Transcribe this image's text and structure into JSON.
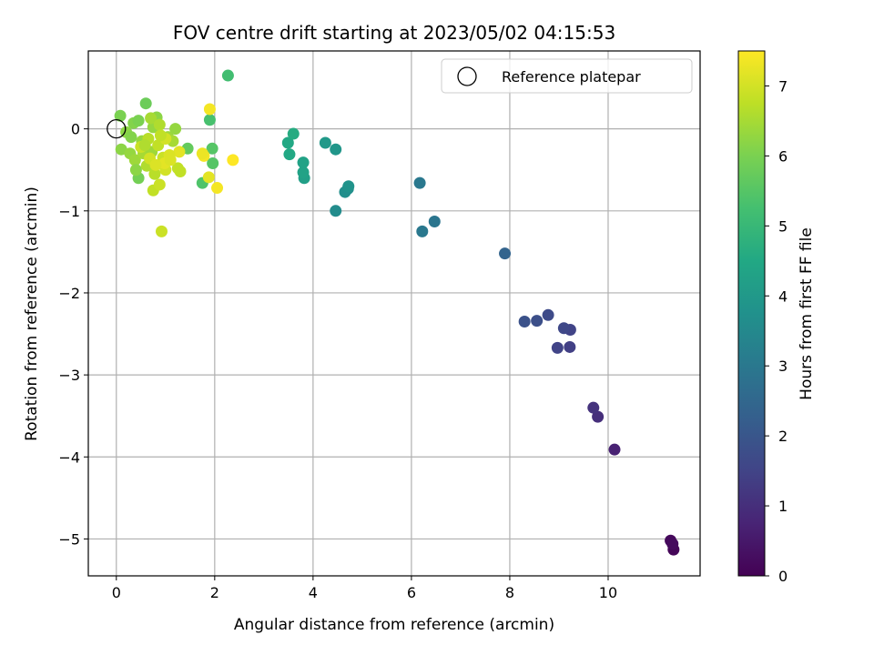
{
  "chart_data": {
    "type": "scatter",
    "title": "FOV centre drift starting at 2023/05/02 04:15:53",
    "xlabel": "Angular distance from reference (arcmin)",
    "ylabel": "Rotation from reference (arcmin)",
    "xlim": [
      -0.57,
      11.87
    ],
    "ylim": [
      -5.45,
      0.95
    ],
    "xticks": [
      0,
      2,
      4,
      6,
      8,
      10
    ],
    "yticks": [
      0,
      -1,
      -2,
      -3,
      -4,
      -5
    ],
    "xtick_labels": [
      "0",
      "2",
      "4",
      "6",
      "8",
      "10"
    ],
    "ytick_labels": [
      "0",
      "−1",
      "−2",
      "−3",
      "−4",
      "−5"
    ],
    "grid": true,
    "legend": {
      "position": "top-right",
      "entries": [
        "Reference platepar"
      ]
    },
    "reference_point": {
      "x": 0,
      "y": 0
    },
    "colorbar": {
      "label": "Hours from first FF file",
      "range": [
        0,
        7.5
      ],
      "ticks": [
        0,
        1,
        2,
        3,
        4,
        5,
        6,
        7
      ],
      "tick_labels": [
        "0",
        "1",
        "2",
        "3",
        "4",
        "5",
        "6",
        "7"
      ],
      "colormap": "viridis"
    },
    "points": [
      {
        "x": 11.33,
        "y": -5.13,
        "c": 0.1
      },
      {
        "x": 11.27,
        "y": -5.02,
        "c": 0.15
      },
      {
        "x": 11.31,
        "y": -5.06,
        "c": 0.2
      },
      {
        "x": 10.13,
        "y": -3.91,
        "c": 0.7
      },
      {
        "x": 9.79,
        "y": -3.51,
        "c": 1.0
      },
      {
        "x": 9.7,
        "y": -3.4,
        "c": 1.1
      },
      {
        "x": 9.22,
        "y": -2.66,
        "c": 1.4
      },
      {
        "x": 8.97,
        "y": -2.67,
        "c": 1.5
      },
      {
        "x": 9.23,
        "y": -2.45,
        "c": 1.5
      },
      {
        "x": 9.1,
        "y": -2.43,
        "c": 1.6
      },
      {
        "x": 8.78,
        "y": -2.27,
        "c": 1.7
      },
      {
        "x": 8.55,
        "y": -2.34,
        "c": 1.8
      },
      {
        "x": 8.3,
        "y": -2.35,
        "c": 1.9
      },
      {
        "x": 7.9,
        "y": -1.52,
        "c": 2.4
      },
      {
        "x": 6.47,
        "y": -1.13,
        "c": 2.9
      },
      {
        "x": 6.22,
        "y": -1.25,
        "c": 3.0
      },
      {
        "x": 6.17,
        "y": -0.66,
        "c": 3.0
      },
      {
        "x": 4.46,
        "y": -1.0,
        "c": 3.6
      },
      {
        "x": 4.65,
        "y": -0.77,
        "c": 3.7
      },
      {
        "x": 4.71,
        "y": -0.73,
        "c": 3.7
      },
      {
        "x": 4.72,
        "y": -0.7,
        "c": 3.8
      },
      {
        "x": 4.46,
        "y": -0.25,
        "c": 3.9
      },
      {
        "x": 4.25,
        "y": -0.17,
        "c": 4.0
      },
      {
        "x": 3.82,
        "y": -0.6,
        "c": 4.2
      },
      {
        "x": 3.8,
        "y": -0.53,
        "c": 4.3
      },
      {
        "x": 3.8,
        "y": -0.41,
        "c": 4.3
      },
      {
        "x": 3.52,
        "y": -0.31,
        "c": 4.5
      },
      {
        "x": 3.49,
        "y": -0.17,
        "c": 4.5
      },
      {
        "x": 3.6,
        "y": -0.06,
        "c": 4.6
      },
      {
        "x": 2.27,
        "y": 0.65,
        "c": 5.2
      },
      {
        "x": 1.9,
        "y": 0.11,
        "c": 5.3
      },
      {
        "x": 1.75,
        "y": -0.66,
        "c": 5.4
      },
      {
        "x": 1.96,
        "y": -0.42,
        "c": 5.5
      },
      {
        "x": 1.95,
        "y": -0.24,
        "c": 5.5
      },
      {
        "x": 1.45,
        "y": -0.24,
        "c": 5.7
      },
      {
        "x": 0.45,
        "y": -0.6,
        "c": 5.9
      },
      {
        "x": 0.6,
        "y": 0.31,
        "c": 5.8
      },
      {
        "x": 0.08,
        "y": 0.16,
        "c": 6.0
      },
      {
        "x": 0.35,
        "y": 0.07,
        "c": 6.1
      },
      {
        "x": 0.45,
        "y": 0.1,
        "c": 6.0
      },
      {
        "x": 0.2,
        "y": -0.04,
        "c": 6.2
      },
      {
        "x": 0.3,
        "y": -0.1,
        "c": 6.1
      },
      {
        "x": 0.52,
        "y": -0.15,
        "c": 6.3
      },
      {
        "x": 0.1,
        "y": -0.25,
        "c": 6.2
      },
      {
        "x": 0.28,
        "y": -0.3,
        "c": 6.3
      },
      {
        "x": 0.38,
        "y": -0.38,
        "c": 6.4
      },
      {
        "x": 0.4,
        "y": -0.5,
        "c": 6.2
      },
      {
        "x": 0.55,
        "y": -0.3,
        "c": 6.5
      },
      {
        "x": 0.62,
        "y": -0.45,
        "c": 6.6
      },
      {
        "x": 0.72,
        "y": -0.28,
        "c": 6.4
      },
      {
        "x": 0.75,
        "y": 0.02,
        "c": 6.3
      },
      {
        "x": 0.82,
        "y": 0.14,
        "c": 6.2
      },
      {
        "x": 0.7,
        "y": 0.13,
        "c": 6.5
      },
      {
        "x": 0.88,
        "y": 0.05,
        "c": 6.6
      },
      {
        "x": 0.65,
        "y": -0.12,
        "c": 6.7
      },
      {
        "x": 0.85,
        "y": -0.2,
        "c": 6.8
      },
      {
        "x": 0.95,
        "y": -0.35,
        "c": 6.9
      },
      {
        "x": 0.78,
        "y": -0.55,
        "c": 6.7
      },
      {
        "x": 0.75,
        "y": -0.75,
        "c": 6.8
      },
      {
        "x": 0.88,
        "y": -0.68,
        "c": 6.9
      },
      {
        "x": 1.0,
        "y": -0.5,
        "c": 7.0
      },
      {
        "x": 1.05,
        "y": -0.1,
        "c": 6.4
      },
      {
        "x": 1.15,
        "y": -0.15,
        "c": 6.5
      },
      {
        "x": 1.2,
        "y": 0.0,
        "c": 6.3
      },
      {
        "x": 1.25,
        "y": -0.48,
        "c": 6.8
      },
      {
        "x": 1.3,
        "y": -0.52,
        "c": 6.8
      },
      {
        "x": 1.28,
        "y": -0.28,
        "c": 7.2
      },
      {
        "x": 1.08,
        "y": -0.32,
        "c": 7.1
      },
      {
        "x": 0.92,
        "y": -1.25,
        "c": 6.9
      },
      {
        "x": 1.0,
        "y": -0.12,
        "c": 7.0
      },
      {
        "x": 0.98,
        "y": -0.42,
        "c": 7.2
      },
      {
        "x": 1.1,
        "y": -0.38,
        "c": 7.1
      },
      {
        "x": 1.78,
        "y": -0.33,
        "c": 7.4
      },
      {
        "x": 1.75,
        "y": -0.3,
        "c": 7.3
      },
      {
        "x": 1.9,
        "y": 0.24,
        "c": 7.4
      },
      {
        "x": 1.88,
        "y": -0.59,
        "c": 7.2
      },
      {
        "x": 2.05,
        "y": -0.72,
        "c": 7.4
      },
      {
        "x": 2.37,
        "y": -0.38,
        "c": 7.5
      },
      {
        "x": 0.5,
        "y": -0.22,
        "c": 6.9
      },
      {
        "x": 0.68,
        "y": -0.36,
        "c": 7.0
      },
      {
        "x": 0.8,
        "y": -0.44,
        "c": 7.1
      },
      {
        "x": 0.58,
        "y": -0.2,
        "c": 6.6
      },
      {
        "x": 0.9,
        "y": -0.08,
        "c": 6.8
      }
    ]
  }
}
